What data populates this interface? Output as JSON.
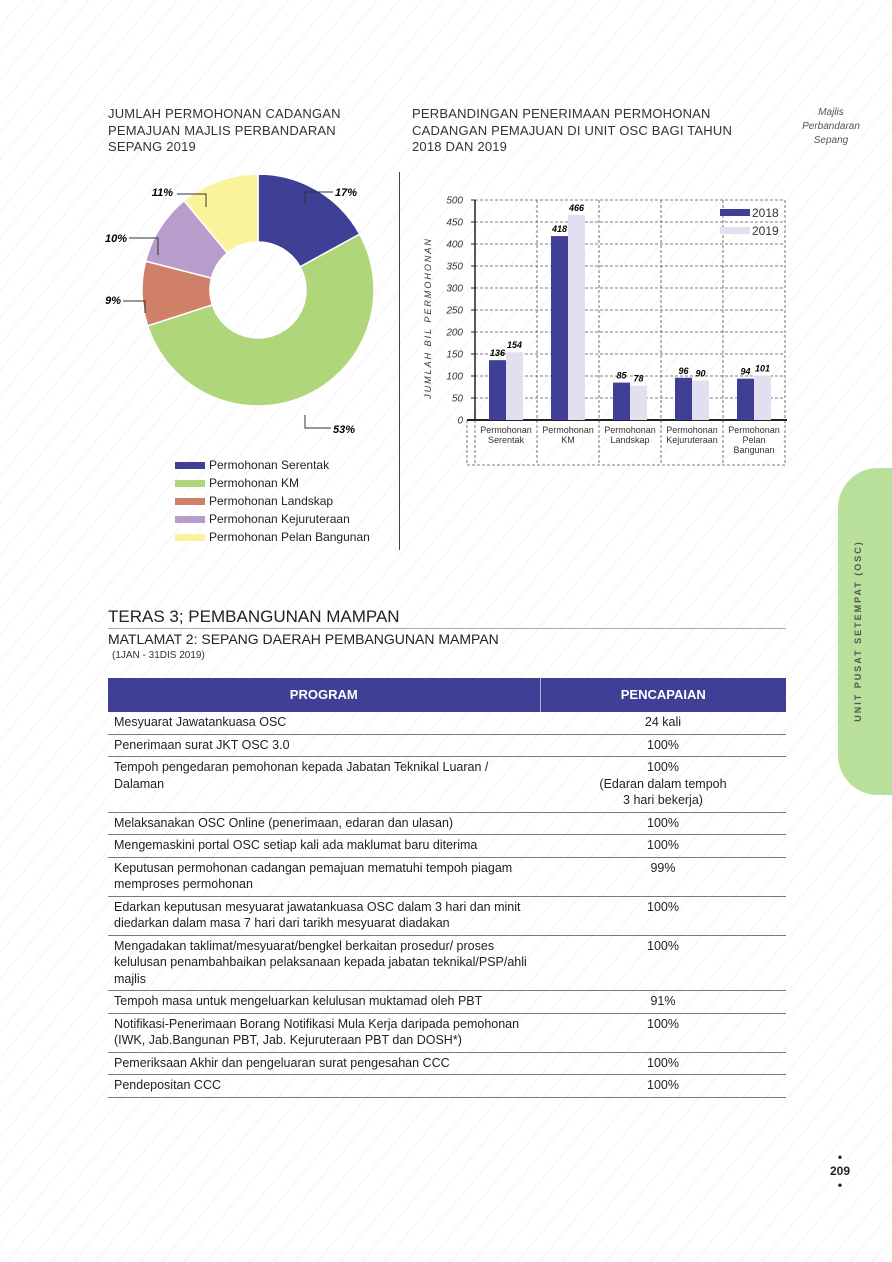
{
  "header": {
    "pie_title": "JUMLAH PERMOHONAN CADANGAN PEMAJUAN MAJLIS PERBANDARAN SEPANG 2019",
    "bar_title": "PERBANDINGAN PENERIMAAN PERMOHONAN CADANGAN PEMAJUAN DI UNIT OSC BAGI TAHUN 2018 DAN 2019",
    "brand_lines": [
      "Majlis",
      "Perbandaran",
      "Sepang"
    ]
  },
  "chart_data": [
    {
      "type": "pie",
      "title": "JUMLAH PERMOHONAN CADANGAN PEMAJUAN MAJLIS PERBANDARAN SEPANG 2019",
      "donut": true,
      "categories": [
        "Permohonan Serentak",
        "Permohonan KM",
        "Permohonan Landskap",
        "Permohonan Kejuruteraan",
        "Permohonan Pelan Bangunan"
      ],
      "values": [
        17,
        53,
        9,
        10,
        11
      ],
      "labels": [
        "17%",
        "53%",
        "9%",
        "10%",
        "11%"
      ],
      "colors": [
        "#3f3f95",
        "#afd67a",
        "#d08068",
        "#b89ccb",
        "#faf39c"
      ],
      "legend": "bottom"
    },
    {
      "type": "bar",
      "title": "PERBANDINGAN PENERIMAAN PERMOHONAN CADANGAN PEMAJUAN DI UNIT OSC BAGI TAHUN 2018 DAN 2019",
      "categories": [
        [
          "Permohonan",
          "Serentak"
        ],
        [
          "Permohonan",
          "KM"
        ],
        [
          "Permohonan",
          "Landskap"
        ],
        [
          "Permohonan",
          "Kejuruteraan"
        ],
        [
          "Permohonan",
          "Pelan",
          "Bangunan"
        ]
      ],
      "series": [
        {
          "name": "2018",
          "values": [
            136,
            418,
            85,
            96,
            94
          ],
          "color": "#3f3f95"
        },
        {
          "name": "2019",
          "values": [
            154,
            466,
            78,
            90,
            101
          ],
          "color": "#e2e0f0"
        }
      ],
      "ylabel": "JUMLAH BIL PERMOHONAN",
      "ylim": [
        0,
        500
      ],
      "yticks": [
        0,
        50,
        100,
        150,
        200,
        250,
        300,
        350,
        400,
        450,
        500
      ],
      "grid": true,
      "legend": "top-right"
    }
  ],
  "side_tab": "UNIT PUSAT SETEMPAT (OSC)",
  "section": {
    "title": "TERAS 3; PEMBANGUNAN MAMPAN",
    "goal": "MATLAMAT 2: SEPANG DAERAH PEMBANGUNAN MAMPAN",
    "period": "(1JAN - 31DIS 2019)"
  },
  "table": {
    "headers": [
      "PROGRAM",
      "PENCAPAIAN"
    ],
    "rows": [
      [
        "Mesyuarat Jawatankuasa OSC",
        "24 kali"
      ],
      [
        "Penerimaan surat JKT OSC 3.0",
        "100%"
      ],
      [
        "Tempoh pengedaran pemohonan kepada Jabatan Teknikal Luaran / Dalaman",
        "100%\n(Edaran dalam tempoh\n3 hari bekerja)"
      ],
      [
        "Melaksanakan OSC Online (penerimaan, edaran dan ulasan)",
        "100%"
      ],
      [
        "Mengemaskini portal OSC setiap kali ada maklumat baru diterima",
        "100%"
      ],
      [
        "Keputusan permohonan cadangan pemajuan mematuhi tempoh piagam memproses permohonan",
        "99%"
      ],
      [
        "Edarkan keputusan mesyuarat jawatankuasa OSC dalam 3 hari dan minit diedarkan dalam masa 7 hari dari tarikh mesyuarat diadakan",
        "100%"
      ],
      [
        "Mengadakan taklimat/mesyuarat/bengkel berkaitan prosedur/ proses kelulusan penambahbaikan pelaksanaan kepada jabatan teknikal/PSP/ahli majlis",
        "100%"
      ],
      [
        "Tempoh masa untuk mengeluarkan kelulusan muktamad oleh PBT",
        "91%"
      ],
      [
        "Notifikasi-Penerimaan Borang Notifikasi Mula Kerja daripada pemohonan (IWK, Jab.Bangunan PBT, Jab. Kejuruteraan PBT dan DOSH*)",
        "100%"
      ],
      [
        "Pemeriksaan Akhir dan pengeluaran surat pengesahan CCC",
        "100%"
      ],
      [
        "Pendepositan CCC",
        "100%"
      ]
    ]
  },
  "page_number": "209"
}
